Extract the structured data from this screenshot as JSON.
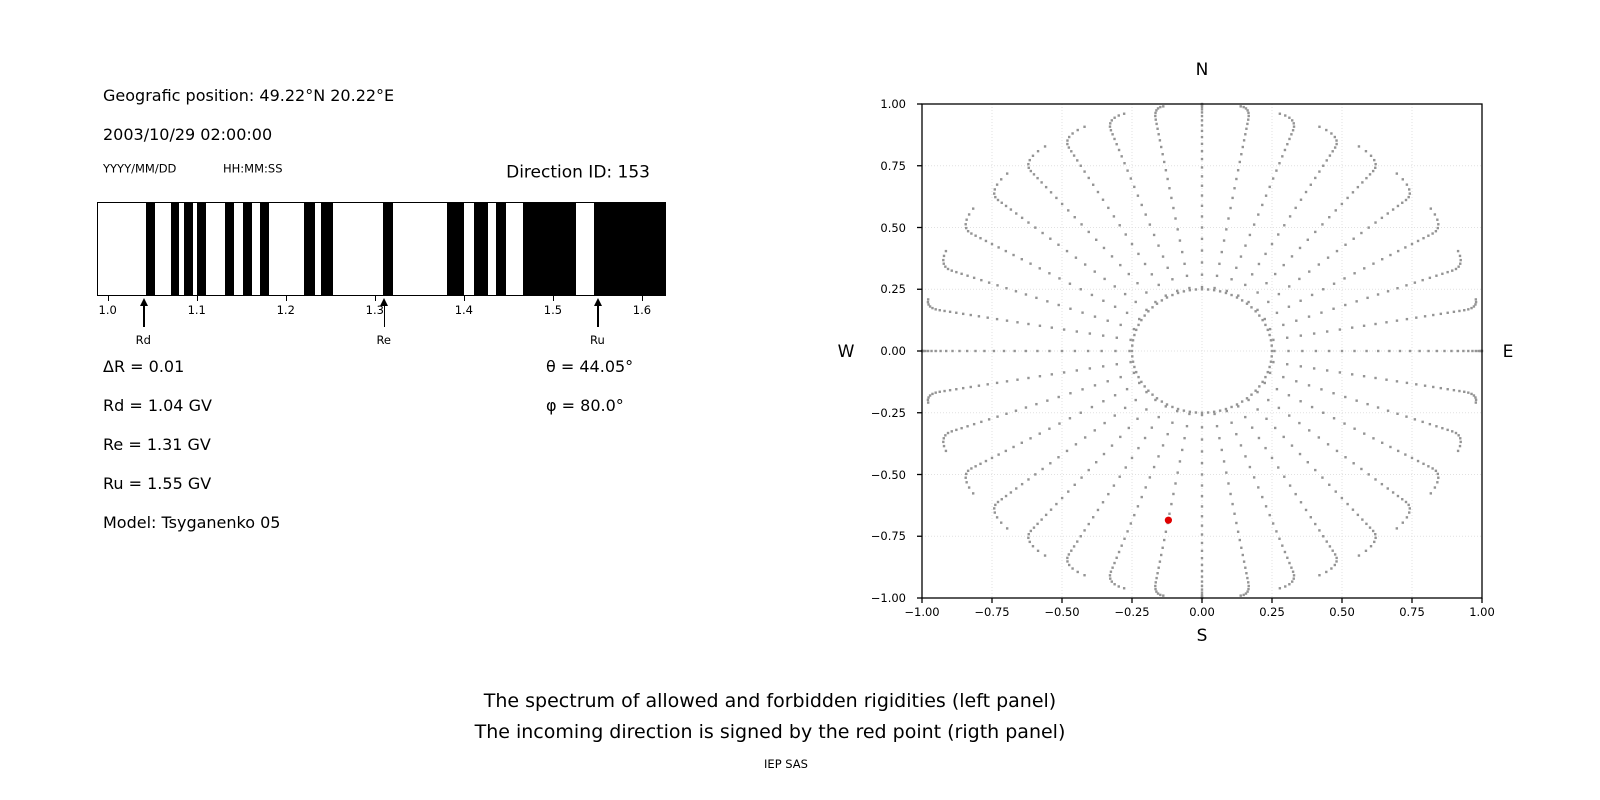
{
  "header": {
    "geographic_position": "Geografic position: 49.22°N 20.22°E",
    "datetime": "2003/10/29 02:00:00",
    "date_format_label": "YYYY/MM/DD",
    "time_format_label": "HH:MM:SS",
    "direction_id": "Direction ID: 153"
  },
  "parameters": {
    "delta_r": "ΔR = 0.01",
    "rd": "Rd = 1.04 GV",
    "re": "Re = 1.31 GV",
    "ru": "Ru = 1.55 GV",
    "model": "Model: Tsyganenko 05",
    "theta": "θ = 44.05°",
    "phi": "φ = 80.0°"
  },
  "caption": {
    "line1": "The spectrum of allowed and forbidden rigidities (left panel)",
    "line2": "The incoming direction is signed by the red point (rigth panel)",
    "credit": "IEP SAS"
  },
  "chart_data": [
    {
      "type": "bar",
      "name": "rigidity-spectrum",
      "title": "Spectrum of allowed (black) and forbidden (white) rigidities",
      "xlim": [
        0.988,
        1.627
      ],
      "xticks": [
        1.0,
        1.1,
        1.2,
        1.3,
        1.4,
        1.5,
        1.6
      ],
      "xtick_labels": [
        "1.0",
        "1.1",
        "1.2",
        "1.3",
        "1.4",
        "1.5",
        "1.6"
      ],
      "delta_r_gv": 0.01,
      "allowed_intervals_gv": [
        [
          1.043,
          1.054
        ],
        [
          1.071,
          1.081
        ],
        [
          1.086,
          1.096
        ],
        [
          1.101,
          1.111
        ],
        [
          1.132,
          1.142
        ],
        [
          1.152,
          1.162
        ],
        [
          1.171,
          1.181
        ],
        [
          1.221,
          1.233
        ],
        [
          1.24,
          1.253
        ],
        [
          1.31,
          1.321
        ],
        [
          1.381,
          1.4
        ],
        [
          1.412,
          1.428
        ],
        [
          1.436,
          1.448
        ],
        [
          1.467,
          1.526
        ],
        [
          1.547,
          1.627
        ]
      ],
      "markers": [
        {
          "label": "Rd",
          "value": 1.04
        },
        {
          "label": "Re",
          "value": 1.31
        },
        {
          "label": "Ru",
          "value": 1.55
        }
      ],
      "bar_color": "#000000",
      "background": "#ffffff"
    },
    {
      "type": "scatter",
      "name": "incoming-direction-map",
      "xlim": [
        -1,
        1
      ],
      "ylim": [
        -1,
        1
      ],
      "tick_values": [
        -1,
        -0.75,
        -0.5,
        -0.25,
        0,
        0.25,
        0.5,
        0.75,
        1
      ],
      "xtick_labels": [
        "−1.00",
        "−0.75",
        "−0.50",
        "−0.25",
        "0.00",
        "0.25",
        "0.50",
        "0.75",
        "1.00"
      ],
      "ytick_labels": [
        "1.00",
        "0.75",
        "0.50",
        "0.25",
        "0.00",
        "−0.25",
        "−0.50",
        "−0.75",
        "−1.00"
      ],
      "compass": {
        "top": "N",
        "bottom": "S",
        "left": "W",
        "right": "E"
      },
      "grid": true,
      "grid_color": "#e1e1e1",
      "dot_color": "#949494",
      "inner_ring": {
        "radius": 0.25,
        "step_deg": 5
      },
      "spokes": {
        "azimuth_step_deg": 10,
        "zenith_start_deg": 15,
        "zenith_end_deg": 90,
        "zenith_step_deg": 3,
        "tip_curl_deg": 6
      },
      "red_point": {
        "x": -0.12,
        "y": -0.685,
        "color": "#e00000"
      }
    }
  ]
}
